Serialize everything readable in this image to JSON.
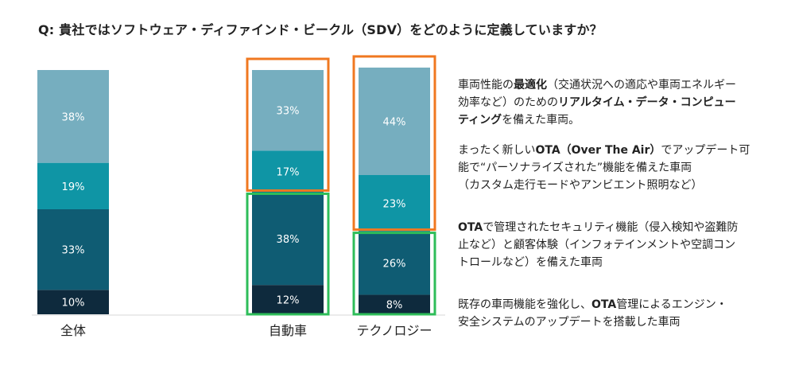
{
  "title": "Q: 貴社ではソフトウェア・ディファインド・ビークル（SDV）をどのように定義していますか？",
  "chart_data": {
    "type": "bar",
    "stacked": true,
    "categories": [
      "全体",
      "自動車",
      "テクノロジー"
    ],
    "series": [
      {
        "values": [
          10,
          12,
          8
        ],
        "color": "#0e2a3d"
      },
      {
        "values": [
          33,
          38,
          26
        ],
        "color": "#0f5c73"
      },
      {
        "values": [
          19,
          17,
          23
        ],
        "color": "#0f95a5"
      },
      {
        "values": [
          38,
          33,
          44
        ],
        "color": "#76aebf"
      }
    ],
    "data_labels": [
      [
        "10%",
        "12%",
        "8%"
      ],
      [
        "33%",
        "38%",
        "26%"
      ],
      [
        "19%",
        "17%",
        "23%"
      ],
      [
        "38%",
        "33%",
        "44%"
      ]
    ],
    "ylim": [
      0,
      100
    ],
    "highlights": [
      {
        "category": "自動車",
        "series": [
          2,
          3
        ],
        "color": "#f07820"
      },
      {
        "category": "自動車",
        "series": [
          0,
          1
        ],
        "color": "#2ebd59"
      },
      {
        "category": "テクノロジー",
        "series": [
          2,
          3
        ],
        "color": "#f07820"
      },
      {
        "category": "テクノロジー",
        "series": [
          0,
          1
        ],
        "color": "#2ebd59"
      }
    ]
  },
  "legend": [
    {
      "parts": [
        {
          "text": "車両性能の",
          "bold": false
        },
        {
          "text": "最適化",
          "bold": true
        },
        {
          "text": "（交通状況への適応や車両エネルギー",
          "bold": false
        },
        {
          "text": "効率など）のための",
          "bold": false
        },
        {
          "text": "リアルタイム・データ・コンピュー",
          "bold": true
        },
        {
          "text": "ティング",
          "bold": true
        },
        {
          "text": "を備えた車両。",
          "bold": false
        }
      ]
    },
    {
      "parts": [
        {
          "text": "まったく新しい",
          "bold": false
        },
        {
          "text": "OTA（Over The Air）",
          "bold": true
        },
        {
          "text": "でアップデート可",
          "bold": false
        },
        {
          "text": "能で“パーソナライズされた”機能を備えた車両",
          "bold": false
        },
        {
          "text": "（カスタム走行モードやアンビエント照明など）",
          "bold": false
        }
      ]
    },
    {
      "parts": [
        {
          "text": "OTA",
          "bold": true
        },
        {
          "text": "で管理されたセキュリティ機能（侵入検知や盗難防",
          "bold": false
        },
        {
          "text": "止など）と顧客体験（インフォテインメントや空調コン",
          "bold": false
        },
        {
          "text": "トロールなど）を備えた車両",
          "bold": false
        }
      ]
    },
    {
      "parts": [
        {
          "text": "既存の車両機能を強化し、",
          "bold": false
        },
        {
          "text": "OTA",
          "bold": true
        },
        {
          "text": "管理によるエンジン・",
          "bold": false
        },
        {
          "text": "安全システムのアップデートを搭載した車両",
          "bold": false
        }
      ]
    }
  ]
}
